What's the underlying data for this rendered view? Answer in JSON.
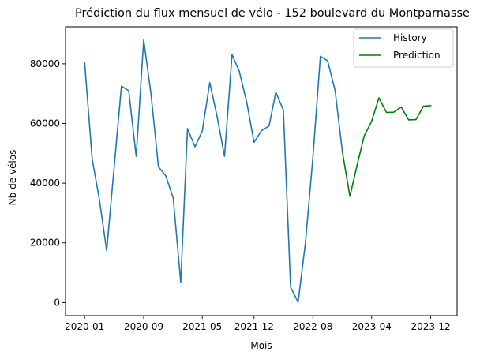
{
  "chart_data": {
    "type": "line",
    "title": "Prédiction du flux mensuel de vélo - 152 boulevard du Montparnasse",
    "xlabel": "Mois",
    "ylabel": "Nb de vélos",
    "x_ticks": [
      "2020-01",
      "2020-09",
      "2021-05",
      "2021-12",
      "2022-08",
      "2023-04",
      "2023-12"
    ],
    "y_ticks": [
      "0",
      "20000",
      "40000",
      "60000",
      "80000"
    ],
    "xlim": [
      "2019-10-14",
      "2024-03-19"
    ],
    "ylim": [
      -4400,
      92400
    ],
    "grid": false,
    "legend_position": "top-right",
    "colors": {
      "history": "#1f77b4",
      "prediction": "#008000"
    },
    "series": [
      {
        "name": "History",
        "color": "#1f77b4",
        "points": [
          [
            "2020-01-01",
            80500
          ],
          [
            "2020-02-01",
            48200
          ],
          [
            "2020-03-01",
            35000
          ],
          [
            "2020-04-01",
            17400
          ],
          [
            "2020-05-01",
            44500
          ],
          [
            "2020-06-01",
            72500
          ],
          [
            "2020-07-01",
            71000
          ],
          [
            "2020-08-01",
            49000
          ],
          [
            "2020-09-01",
            88000
          ],
          [
            "2020-10-01",
            70000
          ],
          [
            "2020-11-01",
            45500
          ],
          [
            "2020-12-01",
            42500
          ],
          [
            "2021-01-01",
            35000
          ],
          [
            "2021-02-01",
            6800
          ],
          [
            "2021-03-01",
            58300
          ],
          [
            "2021-04-01",
            52200
          ],
          [
            "2021-05-01",
            57500
          ],
          [
            "2021-06-01",
            73700
          ],
          [
            "2021-07-01",
            62500
          ],
          [
            "2021-08-01",
            49000
          ],
          [
            "2021-09-01",
            83100
          ],
          [
            "2021-10-01",
            77500
          ],
          [
            "2021-11-01",
            67000
          ],
          [
            "2021-12-01",
            53700
          ],
          [
            "2022-01-01",
            57600
          ],
          [
            "2022-02-01",
            59200
          ],
          [
            "2022-03-01",
            70500
          ],
          [
            "2022-04-01",
            64500
          ],
          [
            "2022-05-01",
            5200
          ],
          [
            "2022-06-01",
            100
          ],
          [
            "2022-07-01",
            19800
          ],
          [
            "2022-08-01",
            48500
          ],
          [
            "2022-09-01",
            82500
          ],
          [
            "2022-10-01",
            81000
          ],
          [
            "2022-11-01",
            71000
          ],
          [
            "2022-12-01",
            50500
          ]
        ]
      },
      {
        "name": "Prediction",
        "color": "#008000",
        "points": [
          [
            "2022-12-01",
            50500
          ],
          [
            "2023-01-01",
            35600
          ],
          [
            "2023-02-01",
            46500
          ],
          [
            "2023-03-01",
            55800
          ],
          [
            "2023-04-01",
            60800
          ],
          [
            "2023-05-01",
            68600
          ],
          [
            "2023-06-01",
            63700
          ],
          [
            "2023-07-01",
            63800
          ],
          [
            "2023-08-01",
            65500
          ],
          [
            "2023-09-01",
            61200
          ],
          [
            "2023-10-01",
            61300
          ],
          [
            "2023-11-01",
            65800
          ],
          [
            "2023-12-01",
            66000
          ]
        ]
      }
    ]
  }
}
